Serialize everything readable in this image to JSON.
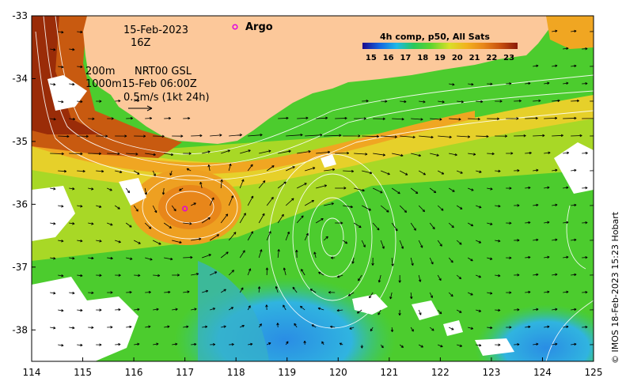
{
  "map": {
    "date_label": "15-Feb-2023",
    "hour_label": "16Z",
    "depth_200": "200m",
    "depth_1000": "1000m",
    "product": "NRT00 GSL",
    "product_time": "15-Feb 06:00Z",
    "scale_label": "0.5m/s (1kt 24h)",
    "argo_label": "Argo",
    "argo_float": {
      "lon": 117.0,
      "lat": -36.07
    },
    "colorbar": {
      "title": "4h comp, p50, All Sats",
      "ticks": [
        "15",
        "16",
        "17",
        "18",
        "19",
        "20",
        "21",
        "22",
        "23"
      ],
      "min": 14.5,
      "max": 23.5
    },
    "credit": "© IMOS 18-Feb-2023 15:23 Hobart",
    "x_ticks": [
      "114",
      "115",
      "116",
      "117",
      "118",
      "119",
      "120",
      "121",
      "122",
      "123",
      "124",
      "125"
    ],
    "y_ticks": [
      "-33",
      "-34",
      "-35",
      "-36",
      "-37",
      "-38"
    ],
    "lon_range": [
      114,
      125
    ],
    "lat_range": [
      -38.5,
      -33
    ],
    "colors": {
      "land": "#fcc89a",
      "frame": "#000000",
      "argo_marker": "#e000e0",
      "contour": "#ffffff"
    }
  }
}
